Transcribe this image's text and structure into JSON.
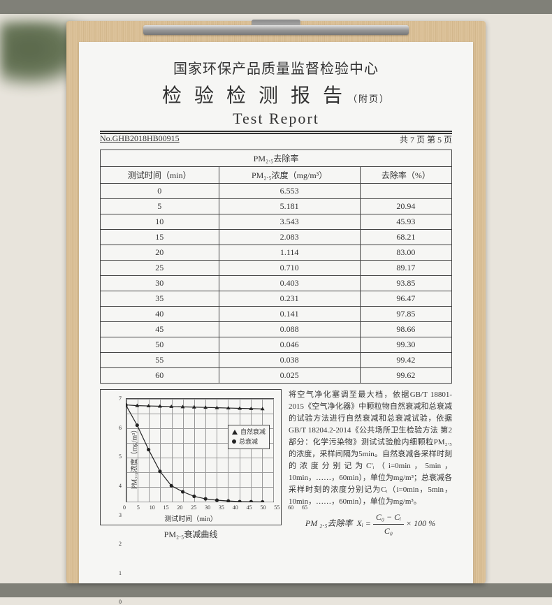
{
  "header": {
    "line1": "国家环保产品质量监督检验中心",
    "line2": "检验检测报告",
    "line2_sub": "（附页）",
    "line3": "Test  Report"
  },
  "meta": {
    "doc_no_label": "No.",
    "doc_no": "GHB2018HB00915",
    "page_info": "共 7 页 第 5 页"
  },
  "table": {
    "title": "PM₂.₅去除率",
    "columns": [
      "测试时间（min）",
      "PM₂.₅浓度（mg/m³）",
      "去除率（%）"
    ],
    "rows": [
      [
        "0",
        "6.553",
        ""
      ],
      [
        "5",
        "5.181",
        "20.94"
      ],
      [
        "10",
        "3.543",
        "45.93"
      ],
      [
        "15",
        "2.083",
        "68.21"
      ],
      [
        "20",
        "1.114",
        "83.00"
      ],
      [
        "25",
        "0.710",
        "89.17"
      ],
      [
        "30",
        "0.403",
        "93.85"
      ],
      [
        "35",
        "0.231",
        "96.47"
      ],
      [
        "40",
        "0.141",
        "97.85"
      ],
      [
        "45",
        "0.088",
        "98.66"
      ],
      [
        "50",
        "0.046",
        "99.30"
      ],
      [
        "55",
        "0.038",
        "99.42"
      ],
      [
        "60",
        "0.025",
        "99.62"
      ]
    ]
  },
  "chart": {
    "title": "PM₂.₅衰减曲线",
    "xlabel": "测试时间（min）",
    "ylabel": "PM₂.₅浓度（mg/m³）",
    "x_ticks": [
      "0",
      "5",
      "10",
      "15",
      "20",
      "25",
      "30",
      "35",
      "40",
      "45",
      "50",
      "55",
      "60",
      "65"
    ],
    "y_ticks": [
      "0",
      "1",
      "2",
      "3",
      "4",
      "5",
      "6",
      "7"
    ],
    "xlim": [
      0,
      65
    ],
    "ylim": [
      0,
      7
    ],
    "legend": [
      "自然衰减",
      "总衰减"
    ],
    "series_natural": {
      "marker": "triangle",
      "color": "#222",
      "values": [
        [
          0,
          6.55
        ],
        [
          5,
          6.5
        ],
        [
          10,
          6.48
        ],
        [
          15,
          6.46
        ],
        [
          20,
          6.44
        ],
        [
          25,
          6.42
        ],
        [
          30,
          6.4
        ],
        [
          35,
          6.38
        ],
        [
          40,
          6.36
        ],
        [
          45,
          6.34
        ],
        [
          50,
          6.32
        ],
        [
          55,
          6.3
        ],
        [
          60,
          6.28
        ]
      ]
    },
    "series_total": {
      "marker": "circle",
      "color": "#222",
      "values": [
        [
          0,
          6.553
        ],
        [
          5,
          5.181
        ],
        [
          10,
          3.543
        ],
        [
          15,
          2.083
        ],
        [
          20,
          1.114
        ],
        [
          25,
          0.71
        ],
        [
          30,
          0.403
        ],
        [
          35,
          0.231
        ],
        [
          40,
          0.141
        ],
        [
          45,
          0.088
        ],
        [
          50,
          0.046
        ],
        [
          55,
          0.038
        ],
        [
          60,
          0.025
        ]
      ]
    },
    "line_width": 1.2,
    "grid_color": "#999",
    "background": "#f6f6f4",
    "marker_size": 5
  },
  "note": {
    "text": "将空气净化塞调至最大档，依据GB/T 18801-2015《空气净化器》中颗粒物自然衰减和总衰减的试验方法进行自然衰减和总衰减试验，依据GB/T 18204.2-2014《公共场所卫生检验方法 第2部分：化学污染物》测试试验舱内细颗粒PM₂.₅的浓度，采样间隔为5min。自然衰减各采样时刻的浓度分别记为C'ᵢ（i=0min，5min，10min，……，60min），单位为mg/m³；总衰减各采样时刻的浓度分别记为Cᵢ（i=0min，5min，10min，……，60min），单位为mg/m³。",
    "formula_label": "PM ₂.₅去除率",
    "formula_var": "Xᵢ =",
    "formula_frac_top": "C₀ − Cᵢ",
    "formula_frac_bot": "C₀",
    "formula_tail": "× 100 %"
  },
  "colors": {
    "border": "#444",
    "text": "#333",
    "paper": "#f6f6f4",
    "wood": "#dcc29a",
    "metal": "#999"
  }
}
